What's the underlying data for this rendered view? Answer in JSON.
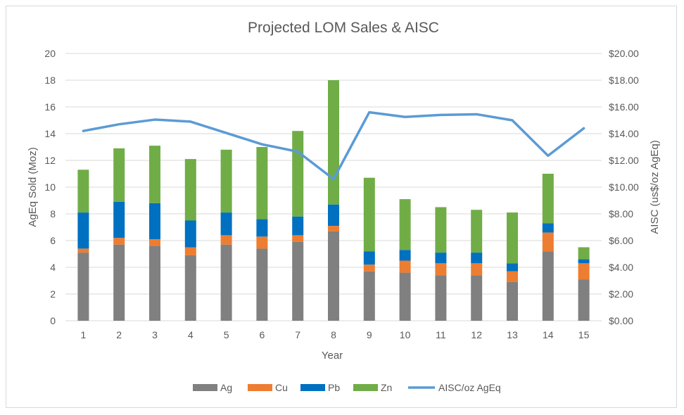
{
  "chart_data": {
    "type": "bar",
    "stacked": true,
    "title": "Projected LOM Sales & AISC",
    "xlabel": "Year",
    "ylabel": "AgEq Sold (Moz)",
    "y2label": "AISC (us$/oz AgEq)",
    "ylim": [
      0,
      20
    ],
    "y2lim": [
      0,
      20
    ],
    "yticks": [
      "0",
      "2",
      "4",
      "6",
      "8",
      "10",
      "12",
      "14",
      "16",
      "18",
      "20"
    ],
    "y2ticks": [
      "$0.00",
      "$2.00",
      "$4.00",
      "$6.00",
      "$8.00",
      "$10.00",
      "$12.00",
      "$14.00",
      "$16.00",
      "$18.00",
      "$20.00"
    ],
    "categories": [
      "1",
      "2",
      "3",
      "4",
      "5",
      "6",
      "7",
      "8",
      "9",
      "10",
      "11",
      "12",
      "13",
      "14",
      "15"
    ],
    "series": [
      {
        "name": "Ag",
        "type": "bar",
        "color": "#808080",
        "values": [
          5.1,
          5.7,
          5.6,
          4.9,
          5.7,
          5.4,
          5.9,
          6.7,
          3.7,
          3.6,
          3.4,
          3.4,
          2.9,
          5.2,
          3.1
        ]
      },
      {
        "name": "Cu",
        "type": "bar",
        "color": "#ed7d31",
        "values": [
          0.3,
          0.5,
          0.5,
          0.6,
          0.7,
          0.9,
          0.5,
          0.4,
          0.5,
          0.9,
          0.9,
          0.9,
          0.8,
          1.4,
          1.2
        ]
      },
      {
        "name": "Pb",
        "type": "bar",
        "color": "#0070c0",
        "values": [
          2.7,
          2.7,
          2.7,
          2.0,
          1.7,
          1.3,
          1.4,
          1.6,
          1.0,
          0.8,
          0.8,
          0.8,
          0.6,
          0.7,
          0.3
        ]
      },
      {
        "name": "Zn",
        "type": "bar",
        "color": "#70ad47",
        "values": [
          3.2,
          4.0,
          4.3,
          4.6,
          4.7,
          5.4,
          6.4,
          9.3,
          5.5,
          3.8,
          3.4,
          3.2,
          3.8,
          3.7,
          0.9
        ]
      },
      {
        "name": "AISC/oz AgEq",
        "type": "line",
        "axis": "right",
        "color": "#5b9bd5",
        "values": [
          14.2,
          14.7,
          15.05,
          14.9,
          14.05,
          13.2,
          12.65,
          10.6,
          15.6,
          15.25,
          15.4,
          15.45,
          15.0,
          12.35,
          14.4
        ]
      }
    ],
    "legend": "bottom",
    "grid": true
  }
}
